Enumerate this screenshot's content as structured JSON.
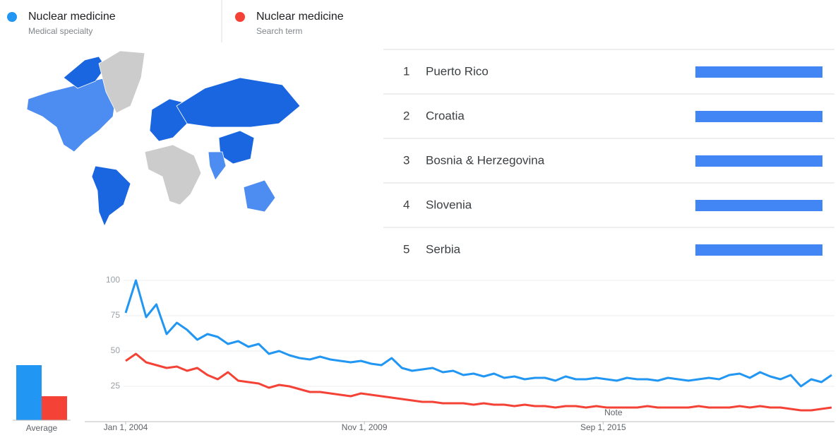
{
  "chart_data": {
    "type": "line",
    "series": [
      {
        "name": "Nuclear medicine",
        "subtitle": "Medical specialty",
        "color": "#2196f3",
        "values": [
          77,
          100,
          74,
          83,
          62,
          70,
          65,
          58,
          62,
          60,
          55,
          57,
          53,
          55,
          48,
          50,
          47,
          45,
          44,
          46,
          44,
          43,
          42,
          43,
          41,
          40,
          45,
          38,
          36,
          37,
          38,
          35,
          36,
          33,
          34,
          32,
          34,
          31,
          32,
          30,
          31,
          31,
          29,
          32,
          30,
          30,
          31,
          30,
          29,
          31,
          30,
          30,
          29,
          31,
          30,
          29,
          30,
          31,
          30,
          33,
          34,
          31,
          35,
          32,
          30,
          33,
          25,
          30,
          28,
          33
        ]
      },
      {
        "name": "Nuclear medicine",
        "subtitle": "Search term",
        "color": "#f44336",
        "values": [
          43,
          48,
          42,
          40,
          38,
          39,
          36,
          38,
          33,
          30,
          35,
          29,
          28,
          27,
          24,
          26,
          25,
          23,
          21,
          21,
          20,
          19,
          18,
          20,
          19,
          18,
          17,
          16,
          15,
          14,
          14,
          13,
          13,
          13,
          12,
          13,
          12,
          12,
          11,
          12,
          11,
          11,
          10,
          11,
          11,
          10,
          11,
          10,
          10,
          10,
          10,
          11,
          10,
          10,
          10,
          10,
          11,
          10,
          10,
          10,
          11,
          10,
          11,
          10,
          10,
          9,
          8,
          8,
          9,
          10
        ]
      }
    ],
    "x": [
      0,
      3,
      6,
      9,
      12,
      15,
      18,
      21,
      24,
      27,
      30,
      33,
      36,
      39,
      42,
      45,
      48,
      51,
      54,
      57,
      60,
      63,
      66,
      69,
      72,
      75,
      78,
      81,
      84,
      87,
      90,
      93,
      96,
      99,
      102,
      105,
      108,
      111,
      114,
      117,
      120,
      123,
      126,
      129,
      132,
      135,
      138,
      141,
      144,
      147,
      150,
      153,
      156,
      159,
      162,
      165,
      168,
      171,
      174,
      177,
      180,
      183,
      186,
      189,
      192,
      195,
      198,
      201,
      204,
      207
    ],
    "xlim": [
      0,
      207
    ],
    "xticks": [
      {
        "value": 0,
        "label": "Jan 1, 2004"
      },
      {
        "value": 70,
        "label": "Nov 1, 2009"
      },
      {
        "value": 140,
        "label": "Sep 1, 2015"
      }
    ],
    "ylim": [
      0,
      100
    ],
    "yticks": [
      25,
      50,
      75,
      100
    ],
    "grid": true,
    "note": "Note",
    "average": {
      "label": "Average",
      "values": [
        39,
        17
      ]
    }
  },
  "ranking": {
    "color": "#4285f4",
    "items": [
      {
        "rank": 1,
        "name": "Puerto Rico",
        "value": 100
      },
      {
        "rank": 2,
        "name": "Croatia",
        "value": 100
      },
      {
        "rank": 3,
        "name": "Bosnia & Herzegovina",
        "value": 100
      },
      {
        "rank": 4,
        "name": "Slovenia",
        "value": 100
      },
      {
        "rank": 5,
        "name": "Serbia",
        "value": 100
      }
    ]
  }
}
